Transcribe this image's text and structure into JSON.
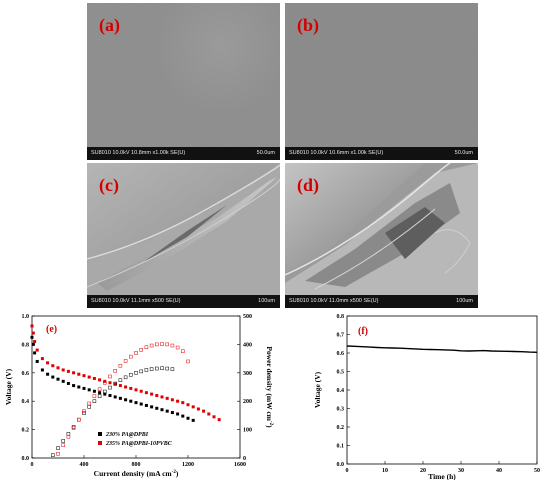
{
  "panels": {
    "a": {
      "label": "(a)",
      "info": "SU8010 10.0kV 10.8mm x1.00k SE(U)",
      "scale": "50.0um"
    },
    "b": {
      "label": "(b)",
      "info": "SU8010 10.0kV 10.6mm x1.00k SE(U)",
      "scale": "50.0um"
    },
    "c": {
      "label": "(c)",
      "info": "SU8010 10.0kV 11.1mm x500 SE(U)",
      "scale": "100um"
    },
    "d": {
      "label": "(d)",
      "info": "SU8010 10.0kV 11.0mm x500 SE(U)",
      "scale": "100um"
    },
    "e": {
      "label": "(e)"
    },
    "f": {
      "label": "(f)"
    }
  },
  "colors": {
    "panel_label": "#d40000",
    "series_black": "#000000",
    "series_red": "#e00000"
  },
  "chart_data": [
    {
      "panel": "e",
      "type": "scatter",
      "xlabel": "Current density (mA cm",
      "xlabel_sup": "-2",
      "ylabel": "Voltage (V)",
      "y2label": "Power density (mW cm",
      "y2label_sup": "-2",
      "xlim": [
        0,
        1600
      ],
      "ylim": [
        0,
        1.0
      ],
      "y2lim": [
        0,
        500
      ],
      "xticks": [
        "0",
        "400",
        "800",
        "1200",
        "1600"
      ],
      "yticks": [
        "0.0",
        "0.2",
        "0.4",
        "0.6",
        "0.8",
        "1.0"
      ],
      "y2ticks": [
        "0",
        "100",
        "200",
        "300",
        "400",
        "500"
      ],
      "legend_position": "bottom-left",
      "series": [
        {
          "name": "230% PA@DPBI",
          "kind": "voltage",
          "color": "#000000",
          "marker": "square-filled",
          "x": [
            0,
            10,
            20,
            40,
            80,
            120,
            160,
            200,
            240,
            280,
            320,
            360,
            400,
            440,
            480,
            520,
            560,
            600,
            640,
            680,
            720,
            760,
            800,
            840,
            880,
            920,
            960,
            1000,
            1040,
            1080,
            1120,
            1160,
            1200,
            1240
          ],
          "y": [
            0.85,
            0.8,
            0.74,
            0.68,
            0.62,
            0.59,
            0.57,
            0.555,
            0.54,
            0.525,
            0.51,
            0.5,
            0.49,
            0.48,
            0.47,
            0.46,
            0.45,
            0.44,
            0.43,
            0.42,
            0.41,
            0.4,
            0.39,
            0.38,
            0.37,
            0.36,
            0.35,
            0.34,
            0.33,
            0.32,
            0.31,
            0.295,
            0.28,
            0.265
          ]
        },
        {
          "name": "235% PA@DPBI-10PVBC",
          "kind": "voltage",
          "color": "#e00000",
          "marker": "square-filled",
          "x": [
            0,
            10,
            20,
            40,
            80,
            120,
            160,
            200,
            240,
            280,
            320,
            360,
            400,
            440,
            480,
            520,
            560,
            600,
            640,
            680,
            720,
            760,
            800,
            840,
            880,
            920,
            960,
            1000,
            1040,
            1080,
            1120,
            1160,
            1200,
            1240,
            1280,
            1320,
            1360,
            1400,
            1440
          ],
          "y": [
            0.93,
            0.88,
            0.82,
            0.76,
            0.7,
            0.67,
            0.65,
            0.635,
            0.62,
            0.61,
            0.6,
            0.59,
            0.58,
            0.57,
            0.56,
            0.55,
            0.54,
            0.53,
            0.52,
            0.51,
            0.5,
            0.49,
            0.48,
            0.47,
            0.46,
            0.45,
            0.44,
            0.43,
            0.42,
            0.41,
            0.4,
            0.39,
            0.375,
            0.36,
            0.345,
            0.33,
            0.31,
            0.29,
            0.27
          ]
        },
        {
          "name": "230% PA@DPBI power",
          "kind": "power",
          "color": "#000000",
          "marker": "square-open",
          "x": [
            160,
            200,
            240,
            280,
            320,
            360,
            400,
            440,
            480,
            520,
            560,
            600,
            640,
            680,
            720,
            760,
            800,
            840,
            880,
            920,
            960,
            1000,
            1040,
            1080
          ],
          "y": [
            10,
            35,
            60,
            85,
            110,
            135,
            158,
            180,
            200,
            218,
            234,
            248,
            262,
            274,
            284,
            293,
            300,
            305,
            310,
            313,
            315,
            316,
            315,
            313
          ]
        },
        {
          "name": "235% PA@DPBI-10PVBC power",
          "kind": "power",
          "color": "#e00000",
          "marker": "square-open",
          "x": [
            200,
            240,
            280,
            320,
            360,
            400,
            440,
            480,
            520,
            560,
            600,
            640,
            680,
            720,
            760,
            800,
            840,
            880,
            920,
            960,
            1000,
            1040,
            1080,
            1120,
            1160,
            1200
          ],
          "y": [
            15,
            45,
            75,
            105,
            135,
            165,
            192,
            218,
            242,
            265,
            287,
            307,
            325,
            342,
            357,
            370,
            381,
            390,
            396,
            400,
            401,
            400,
            396,
            389,
            376,
            340
          ]
        }
      ]
    },
    {
      "panel": "f",
      "type": "line",
      "xlabel": "Time (h)",
      "ylabel": "Voltage (V)",
      "xlim": [
        0,
        50
      ],
      "ylim": [
        0,
        0.8
      ],
      "xticks": [
        "0",
        "10",
        "20",
        "30",
        "40",
        "50"
      ],
      "yticks": [
        "0.0",
        "0.1",
        "0.2",
        "0.3",
        "0.4",
        "0.5",
        "0.6",
        "0.7",
        "0.8"
      ],
      "series": [
        {
          "color": "#000000",
          "x": [
            0,
            2,
            4,
            6,
            8,
            10,
            12,
            14,
            16,
            18,
            20,
            22,
            24,
            26,
            28,
            30,
            32,
            34,
            36,
            38,
            40,
            42,
            44,
            46,
            48,
            50
          ],
          "y": [
            0.638,
            0.636,
            0.634,
            0.632,
            0.63,
            0.628,
            0.627,
            0.626,
            0.624,
            0.622,
            0.62,
            0.619,
            0.618,
            0.617,
            0.615,
            0.612,
            0.611,
            0.612,
            0.613,
            0.611,
            0.61,
            0.609,
            0.608,
            0.607,
            0.605,
            0.604
          ]
        }
      ]
    }
  ]
}
